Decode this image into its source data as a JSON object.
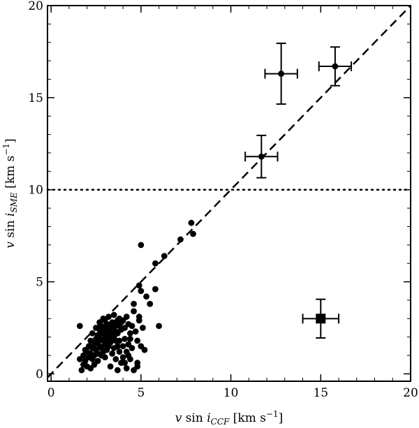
{
  "chart_data": {
    "type": "scatter",
    "title": "",
    "xlabel": "v sin i_CCF [km s⁻¹]",
    "ylabel": "v sin i_SME [km s⁻¹]",
    "xlabel_parts": {
      "lead": "v",
      "fn": " sin ",
      "i": "i",
      "sub": "CCF",
      "unit": " [km s",
      "exp": "−1",
      "close": "]"
    },
    "ylabel_parts": {
      "lead": "v",
      "fn": " sin ",
      "i": "i",
      "sub": "SME",
      "unit": " [km s",
      "exp": "−1",
      "close": "]"
    },
    "xlim": [
      -0.2,
      20
    ],
    "ylim": [
      -0.4,
      20
    ],
    "xticks": [
      "0",
      "5",
      "10",
      "15",
      "20"
    ],
    "yticks": [
      "0",
      "5",
      "10",
      "15",
      "20"
    ],
    "grid": false,
    "reference_lines": [
      {
        "kind": "dashed",
        "description": "one-to-one line",
        "points": [
          [
            -0.2,
            -0.2
          ],
          [
            20,
            20
          ]
        ]
      },
      {
        "kind": "dotted",
        "description": "horizontal threshold",
        "y": 10
      }
    ],
    "errorbar_points": [
      {
        "x": 12.8,
        "y": 16.3,
        "xerr": 0.9,
        "yerr": 1.65
      },
      {
        "x": 15.8,
        "y": 16.7,
        "xerr": 0.9,
        "yerr": 1.05
      },
      {
        "x": 11.7,
        "y": 11.8,
        "xerr": 0.9,
        "yerr": 1.15
      }
    ],
    "square_point": {
      "x": 15.0,
      "y": 3.0,
      "xerr": 1.0,
      "yerr": 1.05
    },
    "points": [
      [
        1.6,
        2.6
      ],
      [
        1.6,
        0.8
      ],
      [
        1.7,
        0.2
      ],
      [
        1.8,
        0.5
      ],
      [
        1.8,
        1.0
      ],
      [
        1.9,
        1.3
      ],
      [
        1.9,
        0.7
      ],
      [
        2.0,
        1.2
      ],
      [
        2.0,
        0.4
      ],
      [
        2.1,
        0.9
      ],
      [
        2.1,
        1.5
      ],
      [
        2.2,
        1.1
      ],
      [
        2.2,
        0.3
      ],
      [
        2.2,
        1.8
      ],
      [
        2.3,
        1.4
      ],
      [
        2.3,
        0.8
      ],
      [
        2.3,
        2.2
      ],
      [
        2.4,
        1.6
      ],
      [
        2.4,
        1.0
      ],
      [
        2.4,
        0.5
      ],
      [
        2.5,
        1.9
      ],
      [
        2.5,
        1.3
      ],
      [
        2.5,
        2.5
      ],
      [
        2.6,
        1.7
      ],
      [
        2.6,
        2.1
      ],
      [
        2.6,
        1.1
      ],
      [
        2.6,
        0.7
      ],
      [
        2.7,
        2.4
      ],
      [
        2.7,
        1.5
      ],
      [
        2.7,
        2.8
      ],
      [
        2.7,
        1.9
      ],
      [
        2.8,
        2.2
      ],
      [
        2.8,
        1.4
      ],
      [
        2.8,
        2.6
      ],
      [
        2.8,
        1.0
      ],
      [
        2.9,
        1.8
      ],
      [
        2.9,
        2.3
      ],
      [
        2.9,
        3.0
      ],
      [
        2.9,
        1.2
      ],
      [
        3.0,
        2.0
      ],
      [
        3.0,
        2.5
      ],
      [
        3.0,
        1.6
      ],
      [
        3.0,
        2.9
      ],
      [
        3.0,
        0.9
      ],
      [
        3.1,
        2.2
      ],
      [
        3.1,
        1.8
      ],
      [
        3.1,
        2.7
      ],
      [
        3.1,
        1.3
      ],
      [
        3.2,
        2.4
      ],
      [
        3.2,
        2.0
      ],
      [
        3.2,
        3.1
      ],
      [
        3.2,
        1.5
      ],
      [
        3.3,
        2.6
      ],
      [
        3.3,
        2.1
      ],
      [
        3.3,
        1.7
      ],
      [
        3.3,
        0.4
      ],
      [
        3.4,
        2.8
      ],
      [
        3.4,
        2.3
      ],
      [
        3.4,
        1.9
      ],
      [
        3.4,
        1.1
      ],
      [
        3.5,
        2.5
      ],
      [
        3.5,
        3.2
      ],
      [
        3.5,
        1.4
      ],
      [
        3.5,
        2.0
      ],
      [
        3.6,
        2.7
      ],
      [
        3.6,
        1.8
      ],
      [
        3.6,
        0.8
      ],
      [
        3.6,
        2.3
      ],
      [
        3.7,
        2.9
      ],
      [
        3.7,
        1.5
      ],
      [
        3.7,
        2.2
      ],
      [
        3.7,
        0.2
      ],
      [
        3.8,
        2.6
      ],
      [
        3.8,
        1.2
      ],
      [
        3.8,
        3.0
      ],
      [
        3.8,
        1.8
      ],
      [
        3.9,
        2.4
      ],
      [
        3.9,
        0.6
      ],
      [
        3.9,
        2.8
      ],
      [
        4.0,
        1.5
      ],
      [
        4.0,
        2.9
      ],
      [
        4.0,
        0.9
      ],
      [
        4.1,
        2.5
      ],
      [
        4.1,
        1.9
      ],
      [
        4.2,
        3.1
      ],
      [
        4.2,
        1.2
      ],
      [
        4.2,
        0.3
      ],
      [
        4.3,
        2.7
      ],
      [
        4.3,
        1.6
      ],
      [
        4.4,
        2.2
      ],
      [
        4.4,
        0.8
      ],
      [
        4.5,
        2.6
      ],
      [
        4.5,
        1.4
      ],
      [
        4.6,
        3.4
      ],
      [
        4.6,
        0.2
      ],
      [
        4.7,
        2.3
      ],
      [
        4.8,
        1.8
      ],
      [
        4.8,
        0.4
      ],
      [
        4.9,
        2.9
      ],
      [
        5.0,
        1.5
      ],
      [
        4.6,
        3.8
      ],
      [
        4.9,
        4.8
      ],
      [
        4.9,
        3.1
      ],
      [
        5.0,
        4.5
      ],
      [
        5.0,
        7.0
      ],
      [
        5.1,
        2.5
      ],
      [
        5.3,
        4.2
      ],
      [
        5.5,
        3.8
      ],
      [
        5.8,
        4.6
      ],
      [
        6.0,
        2.6
      ],
      [
        5.8,
        6.0
      ],
      [
        6.3,
        6.4
      ],
      [
        7.2,
        7.3
      ],
      [
        7.8,
        8.2
      ],
      [
        7.9,
        7.6
      ],
      [
        4.8,
        0.6
      ],
      [
        4.4,
        1.9
      ],
      [
        5.2,
        1.3
      ],
      [
        4.3,
        1.0
      ],
      [
        4.1,
        0.6
      ]
    ]
  }
}
